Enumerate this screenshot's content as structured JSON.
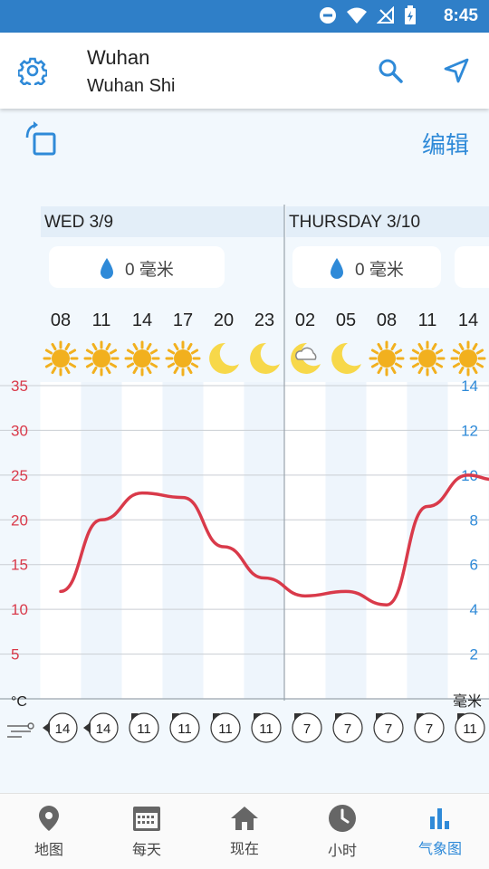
{
  "status_bar": {
    "time": "8:45"
  },
  "header": {
    "city": "Wuhan",
    "region": "Wuhan Shi"
  },
  "toolbar": {
    "edit_label": "编辑"
  },
  "days": [
    {
      "label": "WED 3/9",
      "precip": "0 毫米"
    },
    {
      "label": "THURSDAY 3/10",
      "precip": "0 毫米"
    }
  ],
  "hours": [
    "08",
    "11",
    "14",
    "17",
    "20",
    "23",
    "02",
    "05",
    "08",
    "11",
    "14"
  ],
  "conditions": [
    "sun",
    "sun",
    "sun",
    "sun",
    "moon",
    "moon",
    "cloudy-night",
    "moon",
    "sun",
    "sun",
    "sun"
  ],
  "wind": [
    "14",
    "14",
    "11",
    "11",
    "11",
    "11",
    "7",
    "7",
    "7",
    "7",
    "11"
  ],
  "chart_data": {
    "type": "line",
    "x": [
      "08",
      "11",
      "14",
      "17",
      "20",
      "23",
      "02",
      "05",
      "08",
      "11",
      "14"
    ],
    "series": [
      {
        "values": [
          12,
          20,
          23,
          22.5,
          17,
          13.5,
          11.5,
          12,
          10.5,
          21.5,
          25
        ]
      }
    ],
    "ylabel": "°C",
    "ylim": [
      0,
      35
    ],
    "y_ticks": [
      "35",
      "30",
      "25",
      "20",
      "15",
      "10",
      "5"
    ],
    "y2label": "毫米",
    "y2lim": [
      0,
      14
    ],
    "y2_ticks": [
      "14",
      "12",
      "10",
      "8",
      "6",
      "4",
      "2"
    ],
    "grid": true
  },
  "nav": [
    {
      "label": "地图"
    },
    {
      "label": "每天"
    },
    {
      "label": "现在"
    },
    {
      "label": "小时"
    },
    {
      "label": "气象图"
    }
  ],
  "colors": {
    "accent": "#2f8ad8",
    "temp_line": "#d93a4a",
    "status_bar": "#2f7fc8",
    "sun": "#f2b01e",
    "moon": "#f7d84a"
  }
}
